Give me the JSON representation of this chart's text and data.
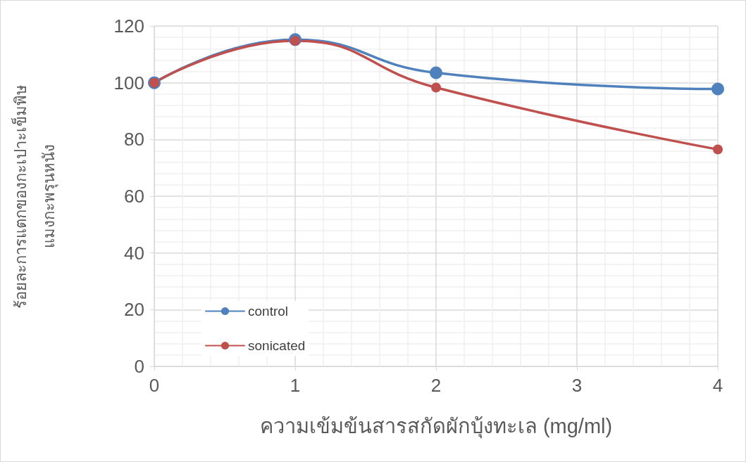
{
  "chart_data": {
    "type": "line",
    "xlabel": "ความเข้มข้นสารสกัดผักบุ้งทะเล (mg/ml)",
    "ylabel": "ร้อยละการแตกของกะเปาะเข็มพิษ\nแมงกะพรุนหนัง",
    "x": [
      0,
      1,
      2,
      4
    ],
    "series": [
      {
        "name": "control",
        "color": "#4f81bd",
        "values": [
          100,
          115.2,
          103.5,
          97.8
        ]
      },
      {
        "name": "sonicated",
        "color": "#c0504d",
        "values": [
          100,
          114.8,
          98.3,
          76.5
        ]
      }
    ],
    "xlim": [
      0,
      4
    ],
    "xticks": [
      0,
      1,
      2,
      3,
      4
    ],
    "ylim": [
      0,
      120
    ],
    "yticks": [
      0,
      20,
      40,
      60,
      80,
      100,
      120
    ],
    "grid": true,
    "legend": "bottom left",
    "marker": "circle",
    "line_style": "solid"
  }
}
